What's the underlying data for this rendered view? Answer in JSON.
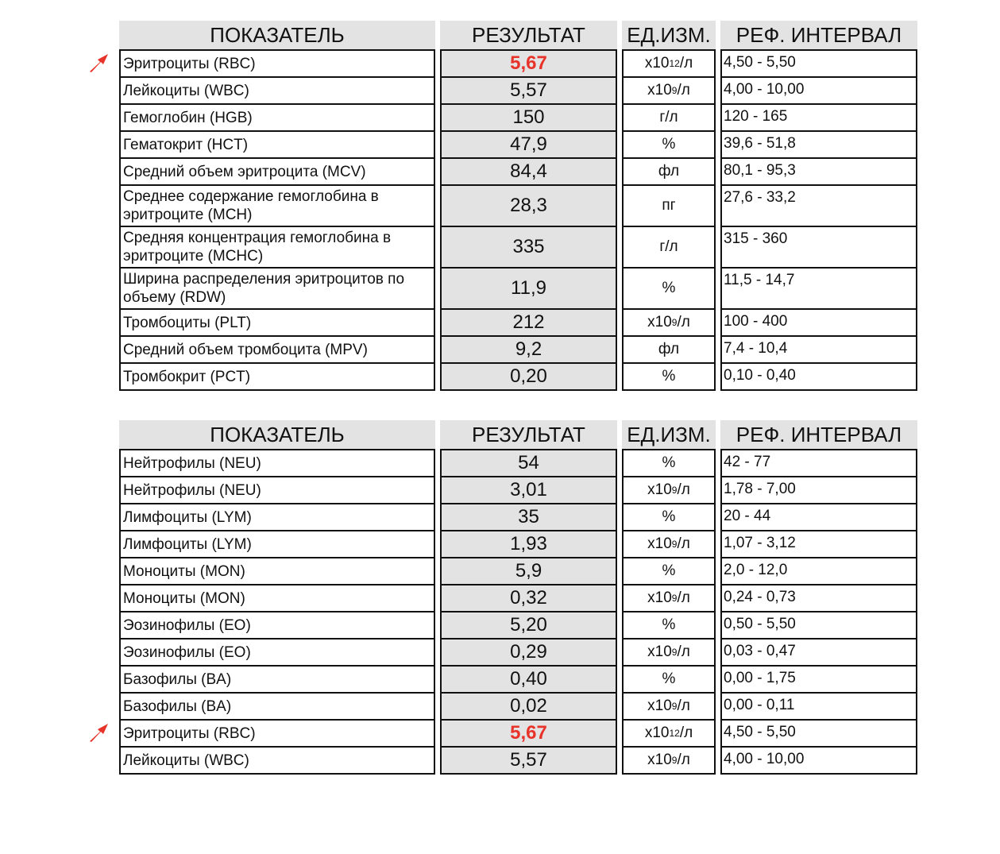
{
  "headers": {
    "name": "ПОКАЗАТЕЛЬ",
    "result": "РЕЗУЛЬТАТ",
    "unit": "ЕД.ИЗМ.",
    "ref": "РЕФ. ИНТЕРВАЛ"
  },
  "colors": {
    "highlight": "#e8332a",
    "result_bg": "#e3e3e3"
  },
  "tables": [
    {
      "rows": [
        {
          "name": "Эритроциты (RBC)",
          "result": "5,67",
          "unit": "x10",
          "exp": "12",
          "unit_suffix": "/л",
          "ref": "4,50 - 5,50",
          "flagged": true
        },
        {
          "name": "Лейкоциты (WBC)",
          "result": "5,57",
          "unit": "x10",
          "exp": "9",
          "unit_suffix": "/л",
          "ref": "4,00 - 10,00"
        },
        {
          "name": "Гемоглобин (HGB)",
          "result": "150",
          "unit": "г/л",
          "ref": "120 - 165"
        },
        {
          "name": "Гематокрит (HCT)",
          "result": "47,9",
          "unit": "%",
          "ref": "39,6 - 51,8"
        },
        {
          "name": "Средний объем эритроцита (MCV)",
          "result": "84,4",
          "unit": "фл",
          "ref": "80,1 - 95,3"
        },
        {
          "name": "Среднее содержание гемоглобина в\nэритроците (MCH)",
          "result": "28,3",
          "unit": "пг",
          "ref": "27,6 - 33,2"
        },
        {
          "name": "Средняя концентрация гемоглобина в\nэритроците (MCHC)",
          "result": "335",
          "unit": "г/л",
          "ref": "315 - 360"
        },
        {
          "name": "Ширина распределения эритроцитов по\nобъему (RDW)",
          "result": "11,9",
          "unit": "%",
          "ref": "11,5 - 14,7"
        },
        {
          "name": "Тромбоциты (PLT)",
          "result": "212",
          "unit": "x10",
          "exp": "9",
          "unit_suffix": "/л",
          "ref": "100 - 400"
        },
        {
          "name": "Средний объем тромбоцита (MPV)",
          "result": "9,2",
          "unit": "фл",
          "ref": "7,4 - 10,4"
        },
        {
          "name": "Тромбокрит (PCT)",
          "result": "0,20",
          "unit": "%",
          "ref": "0,10 - 0,40"
        }
      ]
    },
    {
      "rows": [
        {
          "name": "Нейтрофилы (NEU)",
          "result": "54",
          "unit": "%",
          "ref": "42 - 77"
        },
        {
          "name": "Нейтрофилы (NEU)",
          "result": "3,01",
          "unit": "x10",
          "exp": "9",
          "unit_suffix": "/л",
          "ref": "1,78 - 7,00"
        },
        {
          "name": "Лимфоциты (LYM)",
          "result": "35",
          "unit": "%",
          "ref": "20 - 44"
        },
        {
          "name": "Лимфоциты (LYM)",
          "result": "1,93",
          "unit": "x10",
          "exp": "9",
          "unit_suffix": "/л",
          "ref": "1,07 - 3,12"
        },
        {
          "name": "Моноциты (MON)",
          "result": "5,9",
          "unit": "%",
          "ref": "2,0 - 12,0"
        },
        {
          "name": "Моноциты (MON)",
          "result": "0,32",
          "unit": "x10",
          "exp": "9",
          "unit_suffix": "/л",
          "ref": "0,24 - 0,73"
        },
        {
          "name": "Эозинофилы (EO)",
          "result": "5,20",
          "unit": "%",
          "ref": "0,50 - 5,50"
        },
        {
          "name": "Эозинофилы (EO)",
          "result": "0,29",
          "unit": "x10",
          "exp": "9",
          "unit_suffix": "/л",
          "ref": "0,03 - 0,47"
        },
        {
          "name": "Базофилы (BA)",
          "result": "0,40",
          "unit": "%",
          "ref": "0,00 - 1,75"
        },
        {
          "name": "Базофилы (BA)",
          "result": "0,02",
          "unit": "x10",
          "exp": "9",
          "unit_suffix": "/л",
          "ref": "0,00 - 0,11"
        },
        {
          "name": "Эритроциты (RBC)",
          "result": "5,67",
          "unit": "x10",
          "exp": "12",
          "unit_suffix": "/л",
          "ref": "4,50 - 5,50",
          "flagged": true
        },
        {
          "name": "Лейкоциты (WBC)",
          "result": "5,57",
          "unit": "x10",
          "exp": "9",
          "unit_suffix": "/л",
          "ref": "4,00 - 10,00"
        }
      ]
    }
  ]
}
